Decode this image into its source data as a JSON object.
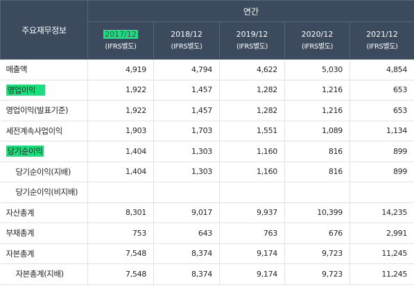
{
  "header": {
    "corner_label": "주요재무정보",
    "period_label": "연간",
    "sub_label": "(IFRS별도)",
    "years": [
      "2017/12",
      "2018/12",
      "2019/12",
      "2020/12",
      "2021/12"
    ]
  },
  "highlight_color": "#19e07d",
  "header_bg_color": "#3c4a5e",
  "rows": [
    {
      "label": "매출액",
      "values": [
        "4,919",
        "4,794",
        "4,622",
        "5,030",
        "4,854"
      ]
    },
    {
      "label": "영업이익",
      "values": [
        "1,922",
        "1,457",
        "1,282",
        "1,216",
        "653"
      ]
    },
    {
      "label": "영업이익(발표기준)",
      "values": [
        "1,922",
        "1,457",
        "1,282",
        "1,216",
        "653"
      ]
    },
    {
      "label": "세전계속사업이익",
      "values": [
        "1,903",
        "1,703",
        "1,551",
        "1,089",
        "1,134"
      ]
    },
    {
      "label": "당기순이익",
      "values": [
        "1,404",
        "1,303",
        "1,160",
        "816",
        "899"
      ]
    },
    {
      "label": "당기순이익(지배)",
      "values": [
        "1,404",
        "1,303",
        "1,160",
        "816",
        "899"
      ]
    },
    {
      "label": "당기순이익(비지배)",
      "values": [
        "",
        "",
        "",
        "",
        ""
      ]
    },
    {
      "label": "자산총계",
      "values": [
        "8,301",
        "9,017",
        "9,937",
        "10,399",
        "14,235"
      ]
    },
    {
      "label": "부채총계",
      "values": [
        "753",
        "643",
        "763",
        "676",
        "2,991"
      ]
    },
    {
      "label": "자본총계",
      "values": [
        "7,548",
        "8,374",
        "9,174",
        "9,723",
        "11,245"
      ]
    },
    {
      "label": "자본총계(지배)",
      "values": [
        "7,548",
        "8,374",
        "9,174",
        "9,723",
        "11,245"
      ]
    }
  ]
}
